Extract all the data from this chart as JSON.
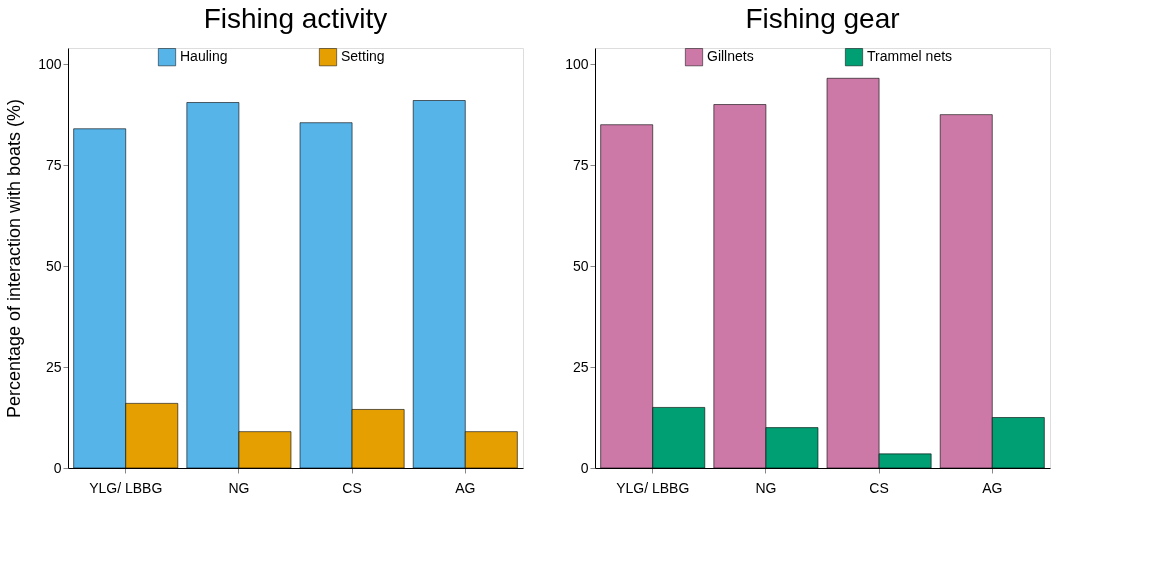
{
  "chart_data": [
    {
      "type": "bar",
      "title": "Fishing activity",
      "ylabel": "Percentage of interaction with boats (%)",
      "categories": [
        "YLG/ LBBG",
        "NG",
        "CS",
        "AG"
      ],
      "series": [
        {
          "name": "Hauling",
          "color": "#56b4e9",
          "values": [
            84,
            90.5,
            85.5,
            91
          ]
        },
        {
          "name": "Setting",
          "color": "#e69f00",
          "values": [
            16,
            9,
            14.5,
            9
          ]
        }
      ],
      "ylim": [
        0,
        104
      ],
      "yticks": [
        0,
        25,
        50,
        75,
        100
      ],
      "grid": false,
      "legend": "top"
    },
    {
      "type": "bar",
      "title": "Fishing gear",
      "categories": [
        "YLG/ LBBG",
        "NG",
        "CS",
        "AG"
      ],
      "series": [
        {
          "name": "Gillnets",
          "color": "#cc79a7",
          "values": [
            85,
            90,
            96.5,
            87.5
          ]
        },
        {
          "name": "Trammel nets",
          "color": "#009e73",
          "values": [
            15,
            10,
            3.5,
            12.5
          ]
        }
      ],
      "ylim": [
        0,
        104
      ],
      "yticks": [
        0,
        25,
        50,
        75,
        100
      ],
      "grid": false,
      "legend": "top"
    }
  ]
}
